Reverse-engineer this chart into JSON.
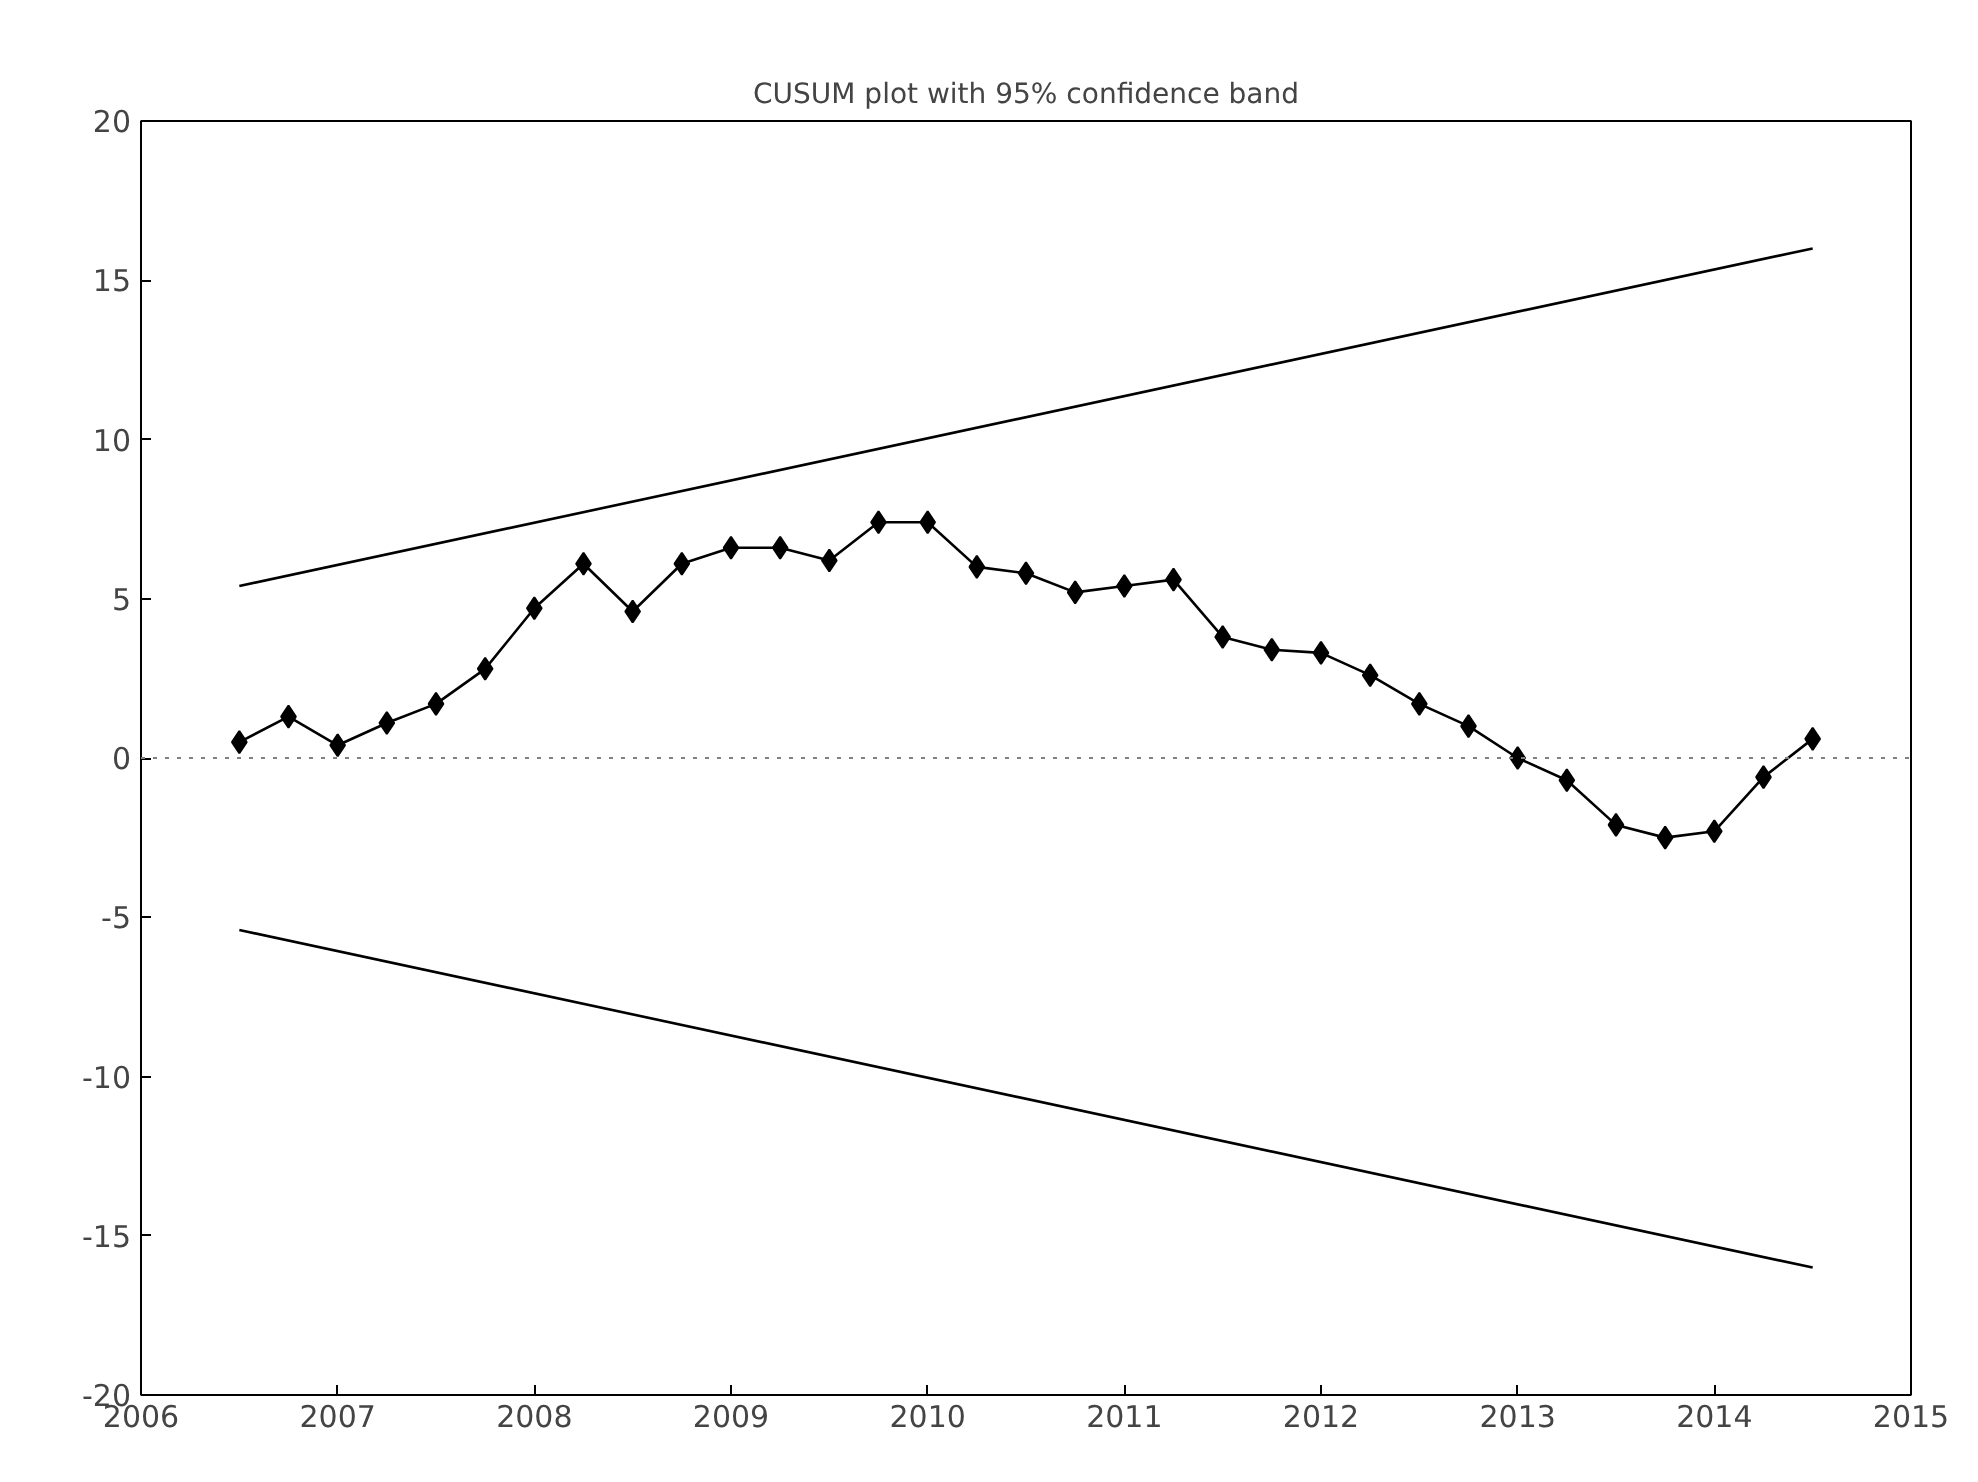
{
  "chart_data": {
    "type": "line",
    "title": "CUSUM plot with 95% confidence band",
    "xlim": [
      2006,
      2015
    ],
    "xticks": [
      2006,
      2007,
      2008,
      2009,
      2010,
      2011,
      2012,
      2013,
      2014,
      2015
    ],
    "ylim": [
      -20,
      20
    ],
    "yticks": [
      -20,
      -15,
      -10,
      -5,
      0,
      5,
      10,
      15,
      20
    ],
    "grid": false,
    "series": [
      {
        "color": "#000000",
        "marker": "diamond",
        "x": [
          2006.5,
          2006.75,
          2007,
          2007.25,
          2007.5,
          2007.75,
          2008,
          2008.25,
          2008.5,
          2008.75,
          2009,
          2009.25,
          2009.5,
          2009.75,
          2010,
          2010.25,
          2010.5,
          2010.75,
          2011,
          2011.25,
          2011.5,
          2011.75,
          2012,
          2012.25,
          2012.5,
          2012.75,
          2013,
          2013.25,
          2013.5,
          2013.75,
          2014,
          2014.25,
          2014.5
        ],
        "values": [
          0.5,
          1.3,
          0.4,
          1.1,
          1.7,
          2.8,
          4.7,
          6.1,
          4.6,
          6.1,
          6.6,
          6.6,
          6.2,
          7.4,
          7.4,
          6.0,
          5.8,
          5.2,
          5.4,
          5.6,
          3.8,
          3.4,
          3.3,
          2.6,
          1.7,
          1.0,
          0.0,
          -0.7,
          -2.1,
          -2.5,
          -2.3,
          -0.6,
          0.6
        ]
      },
      {
        "color": "#000000",
        "marker": "none",
        "x": [
          2006.5,
          2014.5
        ],
        "values": [
          5.4,
          16.0
        ]
      },
      {
        "color": "#000000",
        "marker": "none",
        "x": [
          2006.5,
          2014.5
        ],
        "values": [
          -5.4,
          -16.0
        ]
      }
    ],
    "ref_lines": [
      {
        "axis": "y",
        "value": 0,
        "color": "#808080",
        "line_style": "dotted"
      }
    ]
  }
}
